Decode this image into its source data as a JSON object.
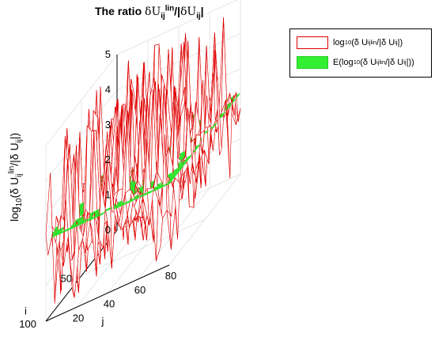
{
  "figure": {
    "title_prefix": "The ratio ",
    "title_sym1": "δU",
    "title_sub1": "ij",
    "title_sup1": "lin",
    "title_mid": "/|",
    "title_sym2": "δU",
    "title_sub2": "ij",
    "title_end": "|"
  },
  "ylabel": {
    "prefix": "log",
    "sub": "10",
    "open": "(δ U",
    "sub2": "ij",
    "sup2": "lin",
    "mid": "/|δ U",
    "sub3": "ij",
    "close": "|)"
  },
  "legend": {
    "entries": [
      {
        "prefix": "log",
        "sub": "10",
        "open": "(δ U",
        "sub2": "ij",
        "sup2": "lin",
        "mid": "/|δ U",
        "sub3": "ij",
        "close": "|)"
      },
      {
        "prefix": "E(log",
        "sub": "10",
        "open": "(δ U",
        "sub2": "ij",
        "sup2": "lin",
        "mid": "/|δ U",
        "sub3": "ij",
        "close": "|))"
      }
    ]
  },
  "colors": {
    "series_edge": "#e00000",
    "series_face": "#ffffff",
    "mean_face": "#33ee33",
    "mean_edge": "#22cc22",
    "grid": "#e6e6e6",
    "axis": "#000000"
  },
  "chart_data": {
    "type": "surface",
    "xlabel": "j",
    "ylabel": "i",
    "zlabel": "log10(δ U_ij^lin/|δ U_ij|)",
    "xlim": [
      0,
      80
    ],
    "ylim": [
      0,
      100
    ],
    "zlim": [
      0,
      5
    ],
    "xticks": [
      20,
      40,
      60,
      80
    ],
    "yticks": [
      50,
      100
    ],
    "zticks": [
      0,
      1,
      2,
      3,
      4,
      5
    ],
    "grid": true,
    "legend_position": "top-right",
    "series": [
      {
        "name": "log10(δ U_ij^lin/|δ U_ij|)",
        "style": "mesh",
        "mean_level": 2.3,
        "min": 0.1,
        "max": 5.0
      },
      {
        "name": "E(log10(δ U_ij^lin/|δ U_ij|))",
        "style": "plane",
        "value": 2.3
      }
    ]
  }
}
